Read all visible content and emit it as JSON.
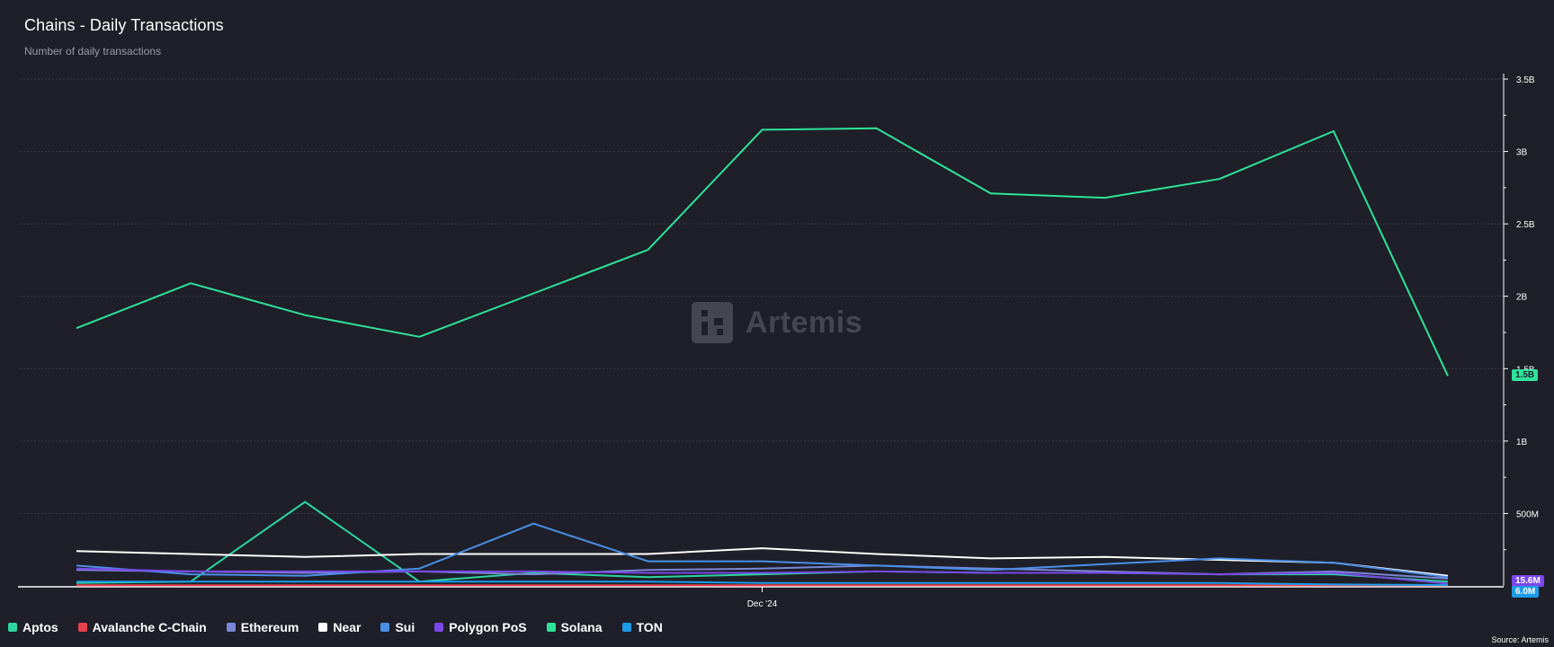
{
  "header": {
    "title": "Chains - Daily Transactions",
    "subtitle": "Number of daily transactions"
  },
  "watermark": {
    "text": "Artemis"
  },
  "source": "Source: Artemis",
  "colors": {
    "background": "#1e1f29",
    "grid": "#3a3c48",
    "axis": "#ffffff",
    "tick_text": "#ffffff"
  },
  "badges": {
    "solana": {
      "text": "1.5B",
      "color": "#2fe39a",
      "text_color": "#1e1f29"
    },
    "ton": {
      "text": "6.0M",
      "color": "#1e9be8",
      "text_color": "#ffffff"
    },
    "hidden": {
      "text": "15.6M",
      "color": "#7a48e8",
      "text_color": "#ffffff"
    }
  },
  "chart_data": {
    "type": "line",
    "title": "Chains - Daily Transactions",
    "subtitle": "Number of daily transactions",
    "xlabel": "",
    "ylabel": "",
    "x_tick_labels": [
      {
        "index": 6,
        "label": "Dec '24"
      }
    ],
    "y_tick_labels": [
      "500M",
      "1B",
      "1.5B",
      "2B",
      "2.5B",
      "3B",
      "3.5B"
    ],
    "y_tick_values": [
      500000000,
      1000000000,
      1500000000,
      2000000000,
      2500000000,
      3000000000,
      3500000000
    ],
    "ylim": [
      0,
      3500000000
    ],
    "grid": true,
    "legend_position": "bottom-left",
    "point_count": 13,
    "series": [
      {
        "name": "Aptos",
        "color": "#2dd4a0",
        "values": [
          20000000,
          30000000,
          580000000,
          30000000,
          90000000,
          60000000,
          80000000,
          100000000,
          90000000,
          90000000,
          80000000,
          80000000,
          30000000
        ]
      },
      {
        "name": "Avalanche C-Chain",
        "color": "#e8414b",
        "values": [
          5000000,
          5000000,
          5000000,
          5000000,
          5000000,
          5000000,
          5000000,
          5000000,
          5000000,
          5000000,
          5000000,
          5000000,
          4000000
        ]
      },
      {
        "name": "Ethereum",
        "color": "#7b86d6",
        "values": [
          110000000,
          100000000,
          90000000,
          100000000,
          80000000,
          110000000,
          120000000,
          140000000,
          120000000,
          100000000,
          80000000,
          100000000,
          50000000
        ]
      },
      {
        "name": "Near",
        "color": "#ffffff",
        "values": [
          240000000,
          220000000,
          200000000,
          220000000,
          220000000,
          220000000,
          260000000,
          220000000,
          190000000,
          200000000,
          180000000,
          160000000,
          70000000
        ]
      },
      {
        "name": "Sui",
        "color": "#4a8fe6",
        "values": [
          140000000,
          80000000,
          70000000,
          120000000,
          430000000,
          170000000,
          170000000,
          140000000,
          110000000,
          150000000,
          190000000,
          160000000,
          60000000
        ]
      },
      {
        "name": "Polygon PoS",
        "color": "#7a48e8",
        "values": [
          120000000,
          100000000,
          100000000,
          100000000,
          100000000,
          90000000,
          90000000,
          100000000,
          90000000,
          90000000,
          80000000,
          90000000,
          15600000
        ]
      },
      {
        "name": "Solana",
        "color": "#2fe39a",
        "values": [
          1780000000,
          2090000000,
          1870000000,
          1720000000,
          2020000000,
          2320000000,
          3150000000,
          3160000000,
          2710000000,
          2680000000,
          2810000000,
          3140000000,
          1450000000
        ]
      },
      {
        "name": "TON",
        "color": "#1e9be8",
        "values": [
          30000000,
          30000000,
          30000000,
          30000000,
          30000000,
          30000000,
          20000000,
          20000000,
          20000000,
          20000000,
          20000000,
          10000000,
          6000000
        ]
      }
    ]
  }
}
